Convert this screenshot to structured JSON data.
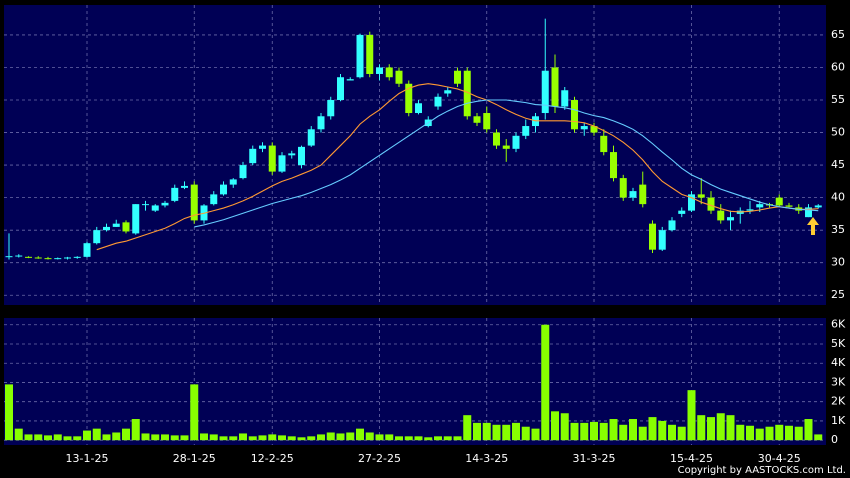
{
  "chart_data": [
    {
      "type": "candlestick",
      "categories": [
        null,
        null,
        null,
        null,
        null,
        null,
        null,
        null,
        "13-1-25",
        null,
        null,
        null,
        null,
        null,
        null,
        null,
        null,
        null,
        null,
        "28-1-25",
        null,
        null,
        null,
        null,
        null,
        null,
        null,
        "12-2-25",
        null,
        null,
        null,
        null,
        null,
        null,
        null,
        null,
        null,
        null,
        "27-2-25",
        null,
        null,
        null,
        null,
        null,
        null,
        null,
        null,
        null,
        null,
        "14-3-25",
        null,
        null,
        null,
        null,
        null,
        null,
        null,
        null,
        null,
        null,
        "31-3-25",
        null,
        null,
        null,
        null,
        null,
        null,
        null,
        null,
        null,
        "15-4-25",
        null,
        null,
        null,
        null,
        null,
        null,
        null,
        null,
        "30-4-25",
        null,
        null,
        null,
        null
      ],
      "open": [
        31,
        31,
        30.9,
        30.8,
        30.7,
        30.6,
        30.7,
        30.8,
        30.9,
        33,
        35,
        35.5,
        36.2,
        34.5,
        39,
        38,
        38.8,
        39.5,
        41.5,
        42,
        36.5,
        39,
        40.5,
        42,
        43,
        45.3,
        47.5,
        48,
        44,
        46.5,
        45,
        48,
        50.5,
        52.5,
        55,
        58,
        58.5,
        65,
        59,
        60,
        59.5,
        57.5,
        53,
        51,
        54,
        56,
        59.5,
        59.5,
        52.5,
        53,
        50,
        48,
        47.5,
        49.5,
        51,
        53,
        60,
        54,
        55,
        50.5,
        51,
        49.5,
        47,
        43,
        40,
        42,
        36,
        32,
        35,
        37.5,
        38,
        40.5,
        40,
        38,
        36.5,
        37.5,
        38,
        38.5,
        39,
        40,
        38.8,
        38.5,
        37,
        38.5
      ],
      "high": [
        34.5,
        31.3,
        31,
        31,
        30.9,
        30.8,
        30.9,
        31,
        33.2,
        35.5,
        36,
        36.6,
        36.5,
        39,
        39.5,
        39,
        39.5,
        42,
        42.5,
        42.5,
        39,
        41,
        42.5,
        43,
        45.5,
        48,
        48.5,
        48.5,
        47,
        47.2,
        48,
        51,
        53,
        55.5,
        59,
        58.5,
        65.2,
        65.5,
        60.5,
        60.5,
        60,
        58,
        55,
        52.5,
        56,
        57,
        60,
        60,
        53,
        54,
        50.5,
        49,
        50,
        52,
        53,
        67.5,
        62,
        57,
        55.5,
        51.5,
        51.5,
        50.5,
        48,
        43.5,
        41.5,
        44,
        36.5,
        35.5,
        37,
        38.5,
        41,
        43,
        41,
        39,
        38,
        38.5,
        39.5,
        39.5,
        39.2,
        40.5,
        39.2,
        39,
        39,
        39
      ],
      "low": [
        30.5,
        30.8,
        30.7,
        30.6,
        30.5,
        30.5,
        30.5,
        30.6,
        30.8,
        32.8,
        34.8,
        35.5,
        34.5,
        34.3,
        38,
        37.8,
        38.5,
        39.3,
        41.3,
        36,
        36,
        38.8,
        40.3,
        41.5,
        42.8,
        45,
        47,
        43.5,
        43.8,
        46,
        44.5,
        47.8,
        50,
        52,
        54.8,
        58,
        58.3,
        58.5,
        58,
        58,
        57,
        52.5,
        52.8,
        50.8,
        53.5,
        55.5,
        57,
        52,
        51,
        50,
        47.5,
        45.5,
        47,
        49,
        50,
        52,
        53,
        53.5,
        50,
        49.5,
        49.5,
        46.5,
        42.5,
        39.5,
        39.5,
        38.5,
        31.5,
        31.8,
        34.8,
        37,
        37.8,
        39,
        37.5,
        36,
        35,
        36,
        37.5,
        37.8,
        38.5,
        38.5,
        38.5,
        37.5,
        37,
        38.3
      ],
      "close": [
        31,
        31.1,
        30.8,
        30.7,
        30.6,
        30.7,
        30.8,
        30.9,
        33,
        35,
        35.5,
        36,
        34.8,
        39,
        39,
        38.8,
        39.2,
        41.5,
        41.8,
        36.5,
        38.8,
        40.5,
        42,
        42.8,
        45,
        47.5,
        48,
        44,
        46.5,
        46.8,
        47.8,
        50.5,
        52.5,
        55,
        58.5,
        58.2,
        65,
        59,
        60,
        58.5,
        57.5,
        53,
        54.5,
        52,
        55.5,
        56.5,
        57.5,
        52.5,
        51.5,
        50.5,
        48,
        47.5,
        49.5,
        51,
        52.5,
        59.5,
        54,
        56.5,
        50.5,
        51,
        50,
        47,
        43,
        40,
        41,
        39,
        32,
        35,
        36.5,
        38,
        40.5,
        40,
        38,
        36.5,
        37,
        38,
        38.2,
        39,
        38.8,
        38.8,
        38.6,
        38,
        38.5,
        38.8
      ],
      "up_color": "#33ffff",
      "down_color": "#99ff00",
      "series": [
        {
          "color": "#ff9933",
          "values": [
            null,
            null,
            null,
            null,
            null,
            null,
            null,
            null,
            null,
            32,
            32.5,
            33,
            33.3,
            33.8,
            34.3,
            34.8,
            35.3,
            36,
            36.8,
            37.3,
            37.6,
            38,
            38.4,
            38.9,
            39.5,
            40.2,
            41,
            41.8,
            42.5,
            43,
            43.6,
            44.2,
            45,
            46.5,
            48,
            49.5,
            51.3,
            52.5,
            53.5,
            54.8,
            56,
            56.8,
            57.3,
            57.5,
            57.3,
            57,
            56.7,
            56.2,
            55.5,
            55,
            54.3,
            53.5,
            52.8,
            52.2,
            51.8,
            51.8,
            51.8,
            51.8,
            51.7,
            51.5,
            51,
            50.3,
            49.5,
            48.5,
            47.3,
            45.8,
            44,
            42.5,
            41.5,
            40.5,
            40,
            39.3,
            38.8,
            38.3,
            37.9,
            37.8,
            37.9,
            38.1,
            38.4,
            38.6,
            38.4,
            38.2,
            38.2,
            38.3
          ]
        },
        {
          "color": "#66ccff",
          "values": [
            null,
            null,
            null,
            null,
            null,
            null,
            null,
            null,
            null,
            null,
            null,
            null,
            null,
            null,
            null,
            null,
            null,
            null,
            null,
            35.5,
            35.8,
            36.2,
            36.6,
            37.1,
            37.6,
            38.1,
            38.6,
            39.1,
            39.5,
            39.9,
            40.3,
            40.8,
            41.4,
            42,
            42.7,
            43.5,
            44.5,
            45.5,
            46.5,
            47.5,
            48.5,
            49.5,
            50.5,
            51.5,
            52.5,
            53.3,
            54,
            54.5,
            54.8,
            55,
            55,
            55,
            54.8,
            54.6,
            54.3,
            54.2,
            54,
            53.8,
            53.5,
            53,
            52.6,
            52.3,
            51.8,
            51.2,
            50.5,
            49.5,
            48.3,
            47,
            45.8,
            44.5,
            43.5,
            42.8,
            42,
            41.3,
            40.8,
            40.3,
            39.8,
            39.3,
            38.9,
            38.6,
            38.4,
            38.2,
            38.1,
            38
          ]
        }
      ],
      "ylim": [
        23.5,
        69.6
      ],
      "yticks": [
        25,
        30,
        35,
        40,
        45,
        50,
        55,
        60,
        65
      ],
      "grid": true
    },
    {
      "type": "bar",
      "color": "#88ff00",
      "values": [
        2900,
        600,
        300,
        300,
        250,
        300,
        200,
        200,
        500,
        600,
        300,
        400,
        600,
        1100,
        350,
        300,
        300,
        250,
        250,
        2900,
        350,
        300,
        200,
        200,
        350,
        200,
        250,
        300,
        250,
        200,
        150,
        200,
        300,
        400,
        350,
        400,
        600,
        400,
        300,
        300,
        200,
        200,
        200,
        150,
        200,
        200,
        200,
        1300,
        900,
        900,
        800,
        800,
        900,
        700,
        600,
        6000,
        1500,
        1400,
        900,
        900,
        950,
        900,
        1100,
        800,
        1100,
        700,
        1200,
        1000,
        800,
        700,
        2600,
        1300,
        1200,
        1400,
        1300,
        800,
        750,
        600,
        700,
        800,
        750,
        700,
        1100,
        300
      ],
      "ylim": [
        -250,
        6350
      ],
      "yticks": [
        0,
        {
          "value": 1000,
          "label": "1K"
        },
        {
          "value": 2000,
          "label": "2K"
        },
        {
          "value": 3000,
          "label": "3K"
        },
        {
          "value": 4000,
          "label": "4K"
        },
        {
          "value": 5000,
          "label": "5K"
        },
        {
          "value": 6000,
          "label": "6K"
        }
      ],
      "grid": true
    }
  ],
  "copyright": "Copyright by AASTOCKS.com Ltd."
}
